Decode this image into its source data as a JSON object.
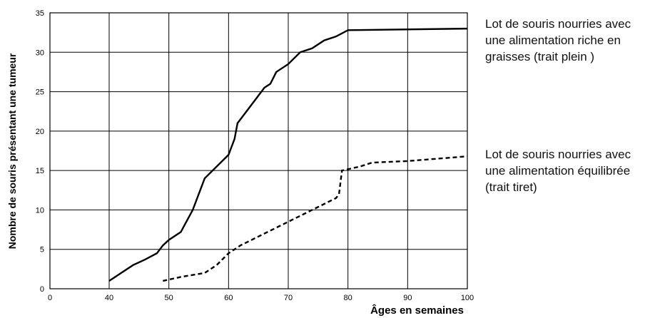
{
  "chart_data": {
    "type": "line",
    "xlabel": "Âges en semaines",
    "ylabel": "Nombre de souris présentant une tumeur",
    "xlim": [
      0,
      100
    ],
    "xbreak": [
      0,
      40
    ],
    "xticks": [
      0,
      40,
      50,
      60,
      70,
      80,
      90,
      100
    ],
    "ylim": [
      0,
      35
    ],
    "yticks": [
      0,
      5,
      10,
      15,
      20,
      25,
      30,
      35
    ],
    "grid": true,
    "series": [
      {
        "name": "Lot de souris nourries avec une alimentation riche en graisses (trait plein )",
        "color": "#000000",
        "dash": "solid",
        "x": [
          40,
          42,
          44,
          46,
          48,
          49,
          50,
          52,
          54,
          56,
          58,
          60,
          61,
          61.5,
          63,
          65,
          66,
          67,
          68,
          70,
          72,
          74,
          76,
          78,
          80,
          100
        ],
        "values": [
          1,
          2,
          3,
          3.7,
          4.5,
          5.5,
          6.2,
          7.2,
          10,
          14,
          15.5,
          17,
          19,
          21,
          22.5,
          24.5,
          25.5,
          26,
          27.5,
          28.5,
          30,
          30.5,
          31.5,
          32,
          32.8,
          33
        ]
      },
      {
        "name": "Lot de souris nourries avec une alimentation équilibrée (trait tiret)",
        "color": "#000000",
        "dash": "dashed",
        "x": [
          49,
          52,
          56,
          58,
          60,
          62,
          66,
          70,
          74,
          78,
          78.5,
          79,
          82,
          84,
          90,
          100
        ],
        "values": [
          1,
          1.5,
          2,
          3,
          4.5,
          5.5,
          7,
          8.5,
          10,
          11.5,
          12,
          15,
          15.5,
          16,
          16.2,
          16.8
        ]
      }
    ]
  }
}
